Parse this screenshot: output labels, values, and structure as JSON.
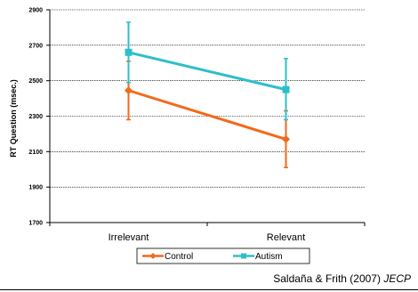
{
  "chart_data": {
    "type": "line",
    "categories": [
      "Irrelevant",
      "Relevant"
    ],
    "ylabel": "RT Question (msec.)",
    "ylim": [
      1700,
      2900
    ],
    "yticks": [
      1700,
      1900,
      2100,
      2300,
      2500,
      2700,
      2900
    ],
    "grid": "horizontal-dashed",
    "legend": "bottom",
    "series": [
      {
        "name": "Control",
        "color": "#f26a1b",
        "marker": "diamond",
        "values": [
          2445,
          2170
        ],
        "error_low": [
          2280,
          2010
        ],
        "error_high": [
          2610,
          2330
        ]
      },
      {
        "name": "Autism",
        "color": "#2dbfc9",
        "marker": "square",
        "values": [
          2660,
          2450
        ],
        "error_low": [
          2490,
          2280
        ],
        "error_high": [
          2830,
          2625
        ]
      }
    ]
  },
  "citation": {
    "authors": "Saldaña & Frith (2007)",
    "journal": "JECP"
  }
}
